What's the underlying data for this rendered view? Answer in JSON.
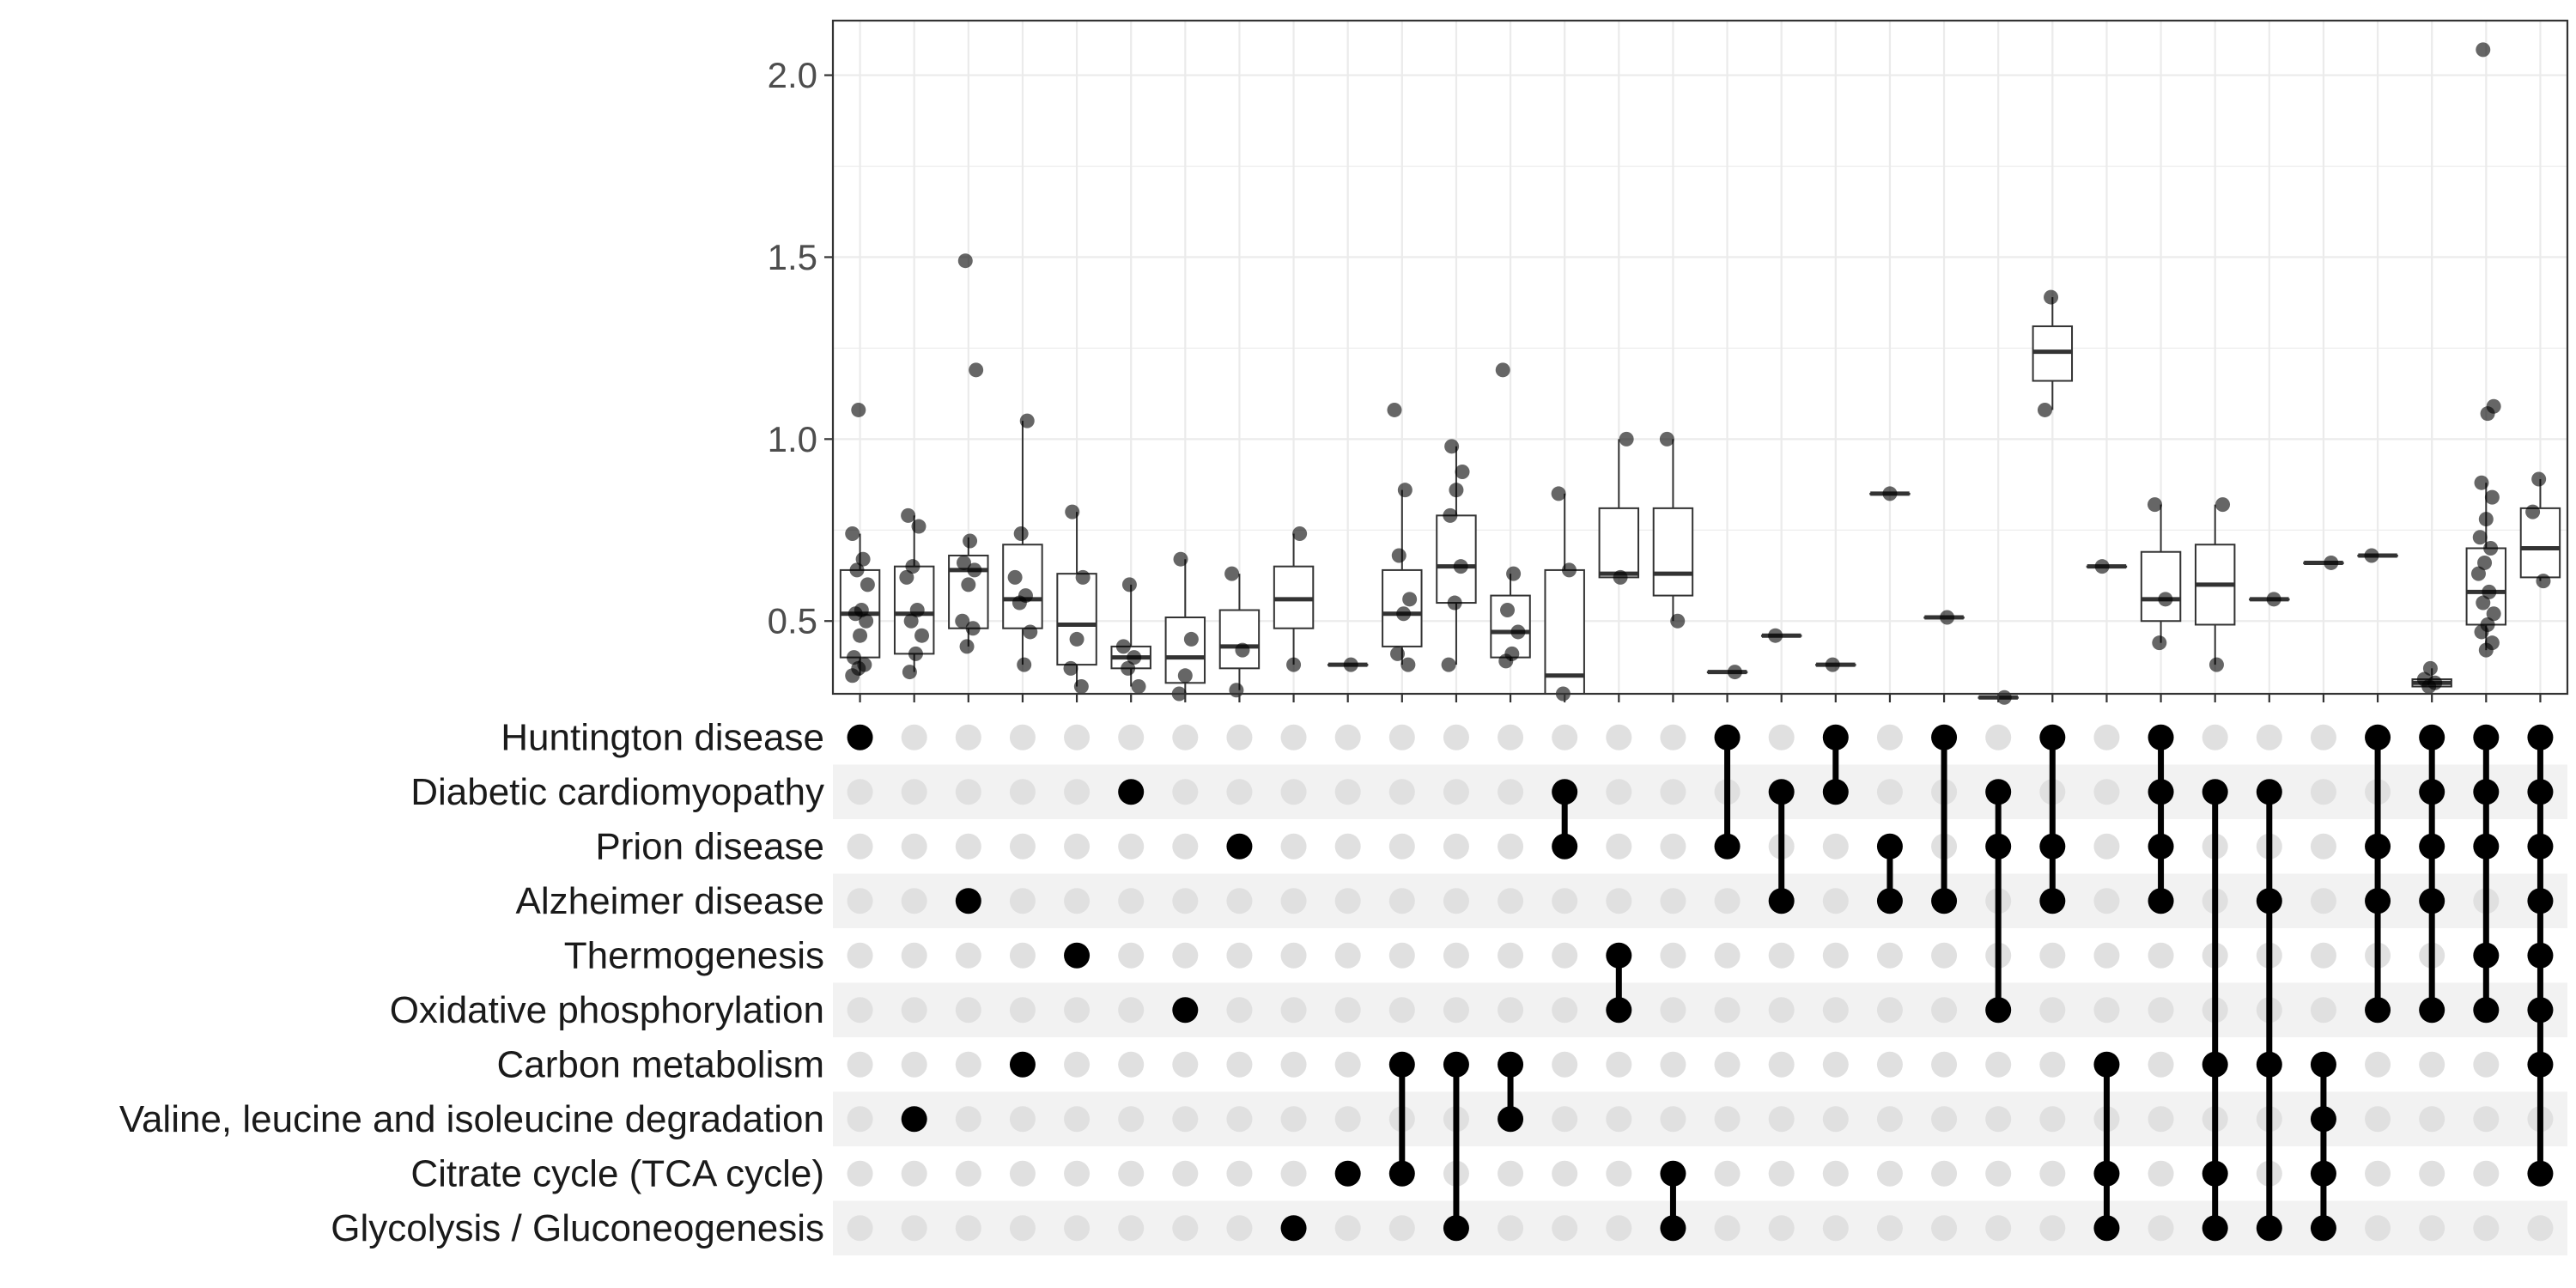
{
  "chart_data": {
    "type": "upset-boxplot",
    "title": "",
    "xlabel": "",
    "ylabel": "",
    "ylim": [
      0.3,
      2.15
    ],
    "y_ticks": [
      0.5,
      1.0,
      1.5,
      2.0
    ],
    "y_tick_labels": [
      "0.5",
      "1.0",
      "1.5",
      "2.0"
    ],
    "grid": true,
    "sets": [
      "Huntington disease",
      "Diabetic cardiomyopathy",
      "Prion disease",
      "Alzheimer disease",
      "Thermogenesis",
      "Oxidative phosphorylation",
      "Carbon metabolism",
      "Valine, leucine and isoleucine degradation",
      "Citrate cycle (TCA cycle)",
      "Glycolysis / Gluconeogenesis"
    ],
    "intersections": [
      {
        "sets": [
          0
        ],
        "box": [
          0.4,
          0.52,
          0.64,
          0.35,
          0.74
        ],
        "points": [
          0.35,
          0.37,
          0.38,
          0.4,
          0.46,
          0.5,
          0.52,
          0.53,
          0.6,
          0.64,
          0.67,
          0.74,
          1.08
        ]
      },
      {
        "sets": [
          7
        ],
        "box": [
          0.41,
          0.52,
          0.65,
          0.36,
          0.79
        ],
        "points": [
          0.36,
          0.41,
          0.46,
          0.5,
          0.53,
          0.62,
          0.65,
          0.76,
          0.79
        ]
      },
      {
        "sets": [
          3
        ],
        "box": [
          0.48,
          0.64,
          0.68,
          0.43,
          0.73
        ],
        "points": [
          0.43,
          0.48,
          0.5,
          0.6,
          0.64,
          0.66,
          0.72,
          1.19,
          1.49
        ]
      },
      {
        "sets": [
          6
        ],
        "box": [
          0.48,
          0.56,
          0.71,
          0.38,
          1.05
        ],
        "points": [
          0.38,
          0.47,
          0.55,
          0.57,
          0.62,
          0.74,
          1.05
        ]
      },
      {
        "sets": [
          4
        ],
        "box": [
          0.38,
          0.49,
          0.63,
          0.32,
          0.8
        ],
        "points": [
          0.32,
          0.37,
          0.45,
          0.62,
          0.8
        ]
      },
      {
        "sets": [
          1
        ],
        "box": [
          0.37,
          0.4,
          0.43,
          0.32,
          0.6
        ],
        "points": [
          0.32,
          0.37,
          0.4,
          0.43,
          0.6
        ]
      },
      {
        "sets": [
          5
        ],
        "box": [
          0.33,
          0.4,
          0.51,
          0.3,
          0.67
        ],
        "points": [
          0.3,
          0.35,
          0.45,
          0.67
        ]
      },
      {
        "sets": [
          2
        ],
        "box": [
          0.37,
          0.43,
          0.53,
          0.31,
          0.63
        ],
        "points": [
          0.31,
          0.42,
          0.63
        ]
      },
      {
        "sets": [
          9
        ],
        "box": [
          0.48,
          0.56,
          0.65,
          0.38,
          0.74
        ],
        "points": [
          0.38,
          0.74
        ]
      },
      {
        "sets": [
          8
        ],
        "box": [
          0.38,
          0.38,
          0.38,
          0.38,
          0.38
        ],
        "points": [
          0.38
        ]
      },
      {
        "sets": [
          6,
          8
        ],
        "box": [
          0.43,
          0.52,
          0.64,
          0.38,
          0.86
        ],
        "points": [
          0.38,
          0.41,
          0.52,
          0.56,
          0.68,
          0.86,
          1.08
        ]
      },
      {
        "sets": [
          6,
          9
        ],
        "box": [
          0.55,
          0.65,
          0.79,
          0.38,
          0.98
        ],
        "points": [
          0.38,
          0.55,
          0.65,
          0.79,
          0.86,
          0.91,
          0.98
        ]
      },
      {
        "sets": [
          6,
          7
        ],
        "box": [
          0.4,
          0.47,
          0.57,
          0.39,
          0.63
        ],
        "points": [
          0.39,
          0.41,
          0.47,
          0.53,
          0.63,
          1.19
        ]
      },
      {
        "sets": [
          1,
          2
        ],
        "box": [
          0.3,
          0.35,
          0.64,
          0.3,
          0.85
        ],
        "points": [
          0.3,
          0.64,
          0.85
        ]
      },
      {
        "sets": [
          4,
          5
        ],
        "box": [
          0.62,
          0.63,
          0.81,
          0.62,
          1.0
        ],
        "points": [
          0.62,
          1.0
        ]
      },
      {
        "sets": [
          8,
          9
        ],
        "box": [
          0.57,
          0.63,
          0.81,
          0.5,
          1.0
        ],
        "points": [
          0.5,
          1.0
        ]
      },
      {
        "sets": [
          0,
          2
        ],
        "box": [
          0.36,
          0.36,
          0.36,
          0.36,
          0.36
        ],
        "points": [
          0.36
        ]
      },
      {
        "sets": [
          1,
          3
        ],
        "box": [
          0.46,
          0.46,
          0.46,
          0.46,
          0.46
        ],
        "points": [
          0.46
        ]
      },
      {
        "sets": [
          0,
          1
        ],
        "box": [
          0.38,
          0.38,
          0.38,
          0.38,
          0.38
        ],
        "points": [
          0.38
        ]
      },
      {
        "sets": [
          2,
          3
        ],
        "box": [
          0.85,
          0.85,
          0.85,
          0.85,
          0.85
        ],
        "points": [
          0.85
        ]
      },
      {
        "sets": [
          0,
          3
        ],
        "box": [
          0.51,
          0.51,
          0.51,
          0.51,
          0.51
        ],
        "points": [
          0.51
        ]
      },
      {
        "sets": [
          1,
          2,
          5
        ],
        "box": [
          0.29,
          0.29,
          0.29,
          0.29,
          0.29
        ],
        "points": [
          0.29
        ]
      },
      {
        "sets": [
          0,
          2,
          3
        ],
        "box": [
          1.16,
          1.24,
          1.31,
          1.08,
          1.39
        ],
        "points": [
          1.08,
          1.39
        ]
      },
      {
        "sets": [
          6,
          8,
          9
        ],
        "box": [
          0.65,
          0.65,
          0.65,
          0.65,
          0.65
        ],
        "points": [
          0.65
        ]
      },
      {
        "sets": [
          0,
          1,
          2,
          3
        ],
        "box": [
          0.5,
          0.56,
          0.69,
          0.44,
          0.82
        ],
        "points": [
          0.44,
          0.56,
          0.82
        ]
      },
      {
        "sets": [
          1,
          6,
          8,
          9
        ],
        "box": [
          0.49,
          0.6,
          0.71,
          0.38,
          0.82
        ],
        "points": [
          0.38,
          0.82
        ]
      },
      {
        "sets": [
          1,
          3,
          6,
          9
        ],
        "box": [
          0.56,
          0.56,
          0.56,
          0.56,
          0.56
        ],
        "points": [
          0.56
        ]
      },
      {
        "sets": [
          6,
          7,
          8,
          9
        ],
        "box": [
          0.66,
          0.66,
          0.66,
          0.66,
          0.66
        ],
        "points": [
          0.66
        ]
      },
      {
        "sets": [
          0,
          2,
          3,
          5
        ],
        "box": [
          0.68,
          0.68,
          0.68,
          0.68,
          0.68
        ],
        "points": [
          0.68
        ]
      },
      {
        "sets": [
          0,
          1,
          2,
          3,
          5
        ],
        "box": [
          0.32,
          0.33,
          0.34,
          0.32,
          0.37
        ],
        "points": [
          0.32,
          0.33,
          0.34,
          0.37
        ]
      },
      {
        "sets": [
          0,
          1,
          2,
          4,
          5
        ],
        "box": [
          0.49,
          0.58,
          0.7,
          0.42,
          0.88
        ],
        "points": [
          0.42,
          0.44,
          0.47,
          0.49,
          0.52,
          0.55,
          0.58,
          0.63,
          0.66,
          0.7,
          0.73,
          0.78,
          0.84,
          0.88,
          1.07,
          1.09,
          2.07
        ]
      },
      {
        "sets": [
          0,
          1,
          2,
          3,
          4,
          5,
          6,
          8
        ],
        "box": [
          0.62,
          0.7,
          0.81,
          0.61,
          0.89
        ],
        "points": [
          0.61,
          0.8,
          0.89
        ]
      }
    ]
  }
}
